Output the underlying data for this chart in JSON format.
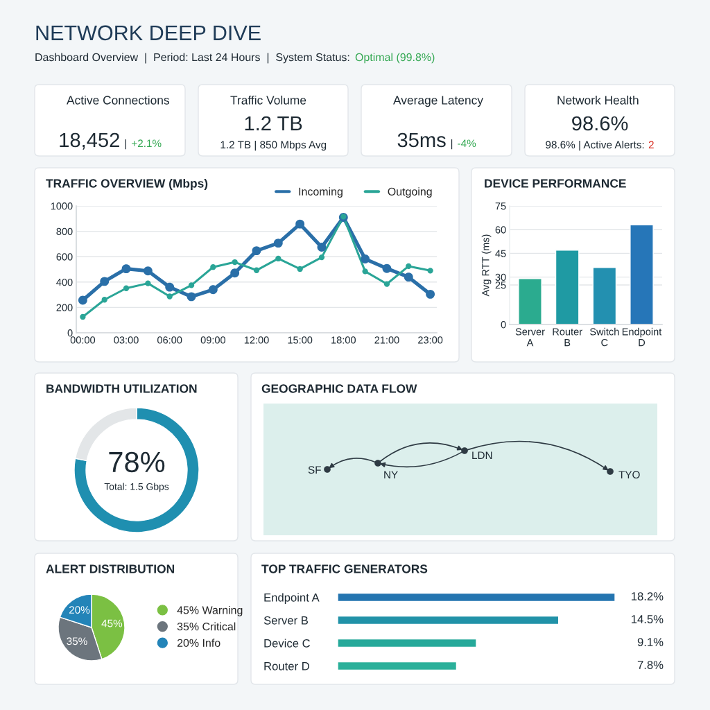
{
  "chart_data": [
    {
      "type": "other",
      "title": "NETWORK DEEP DIVE",
      "subtitle": "Dashboard Overview  |  Period: Last 24 Hours  |  System Status:",
      "annotations": [
        "Optimal (99.8%)"
      ]
    },
    {
      "type": "other",
      "title": "Active Connections",
      "annotations": [
        "18,452",
        "|",
        "+2.1%"
      ]
    },
    {
      "type": "other",
      "title": "Traffic Volume",
      "annotations": [
        "1.2 TB",
        "1.2 TB | 850 Mbps Avg"
      ]
    },
    {
      "type": "other",
      "title": "Average Latency",
      "annotations": [
        "35ms",
        "|",
        "-4%"
      ]
    },
    {
      "type": "other",
      "title": "Network Health",
      "annotations": [
        "98.6%",
        "98.6% | Active Alerts:",
        "2"
      ]
    },
    {
      "type": "line",
      "title": "TRAFFIC OVERVIEW (Mbps)",
      "categories": [
        "00:00",
        null,
        "03:00",
        null,
        "06:00",
        null,
        "09:00",
        null,
        "12:00",
        null,
        "15:00",
        null,
        "18:00",
        null,
        "21:00",
        null,
        "23:00"
      ],
      "series": [
        {
          "name": "Incoming",
          "color": "#2a6fa8",
          "values": [
            257,
            405,
            505,
            488,
            360,
            285,
            340,
            471,
            647,
            707,
            857,
            675,
            910,
            582,
            507,
            439,
            304
          ]
        },
        {
          "name": "Outgoing",
          "color": "#2aa597",
          "values": [
            126,
            261,
            351,
            390,
            287,
            375,
            518,
            557,
            493,
            585,
            503,
            595,
            916,
            484,
            385,
            525,
            490
          ]
        }
      ],
      "ylim": [
        0,
        1000
      ],
      "yticks": [
        0,
        200,
        400,
        600,
        800,
        1000
      ],
      "grid": "y",
      "legend": "top right",
      "marker": "circle"
    },
    {
      "type": "bar",
      "title": "DEVICE PERFORMANCE",
      "ylabel": "Avg RTT (ms)",
      "categories": [
        "Server\nA",
        "Router\nB",
        "Switch\nC",
        "Endpoint\nD"
      ],
      "values": [
        29,
        47,
        36,
        63
      ],
      "colors": [
        "#2bab8f",
        "#1f9aa3",
        "#2390b0",
        "#2676b8"
      ],
      "ylim": [
        0,
        75
      ],
      "yticks": [
        0,
        25,
        30,
        45,
        60,
        75
      ],
      "grid": "y"
    },
    {
      "type": "donut",
      "title": "BANDWIDTH UTILIZATION",
      "categories": [
        null,
        null
      ],
      "values": [
        78,
        22
      ],
      "colors": [
        "#1f8fb0",
        "#e3e6e8"
      ],
      "annotations": [
        "78%",
        "Total: 1.5 Gbps"
      ]
    },
    {
      "type": "other",
      "title": "GEOGRAPHIC DATA FLOW",
      "annotations": [
        "SF",
        "NY",
        "LDN",
        "TYO"
      ]
    },
    {
      "type": "pie",
      "title": "ALERT DISTRIBUTION",
      "categories": [
        "45% Warning",
        "35% Critical",
        "20% Info"
      ],
      "values": [
        45,
        35,
        20
      ],
      "colors": [
        "#7bc043",
        "#6c757d",
        "#2384b8"
      ],
      "value_labels": [
        "45%",
        "35%",
        "20%"
      ],
      "legend": "right"
    },
    {
      "type": "bar",
      "orientation": "horizontal",
      "title": "TOP TRAFFIC GENERATORS",
      "categories": [
        "Endpoint A",
        "Server B",
        "Device C",
        "Router D"
      ],
      "values": [
        18.2,
        14.5,
        9.1,
        7.8
      ],
      "colors": [
        "#2475b0",
        "#2192a8",
        "#26a99a",
        "#2bb09a"
      ],
      "value_labels": [
        "18.2%",
        "14.5%",
        "9.1%",
        "7.8%"
      ]
    }
  ]
}
